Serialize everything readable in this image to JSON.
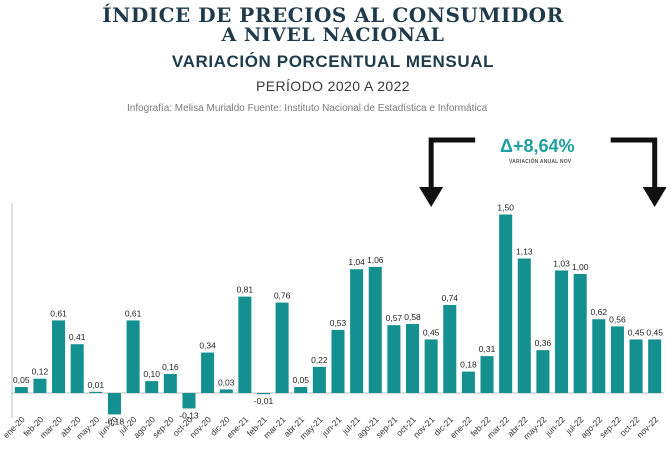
{
  "header": {
    "title_line1": "ÍNDICE DE PRECIOS AL CONSUMIDOR",
    "title_line2": "A NIVEL NACIONAL",
    "subtitle": "VARIACIÓN PORCENTUAL MENSUAL",
    "period": "PERÍODO 2020 A 2022",
    "credit": "Infografía: Melisa Murialdo Fuente: Instituto Nacional de Estadística e Informática"
  },
  "annotation": {
    "annual_change": "Δ+8,64%",
    "annual_label": "VARIACIÓN ANUAL NOV"
  },
  "colors": {
    "bar": "#13908f",
    "arrow": "#111111",
    "accent": "#1e9fa2"
  },
  "chart_data": {
    "type": "bar",
    "title": "VARIACIÓN PORCENTUAL MENSUAL",
    "categories": [
      "ene-20",
      "feb-20",
      "mar-20",
      "abr-20",
      "may-20",
      "jun-20",
      "jul-20",
      "ago-20",
      "sep-20",
      "oct-20",
      "nov-20",
      "dic-20",
      "ene-21",
      "feb-21",
      "mar-21",
      "abr-21",
      "may-21",
      "jun-21",
      "jul-21",
      "ago-21",
      "sep-21",
      "oct-21",
      "nov-21",
      "dic-21",
      "ene-22",
      "feb-22",
      "mar-22",
      "abr-22",
      "may-22",
      "jun-22",
      "jul-22",
      "ago-22",
      "sep-22",
      "oct-22",
      "nov-22"
    ],
    "values": [
      0.05,
      0.12,
      0.61,
      0.41,
      0.01,
      -0.18,
      0.61,
      0.1,
      0.16,
      -0.13,
      0.34,
      0.03,
      0.81,
      -0.01,
      0.76,
      0.05,
      0.22,
      0.53,
      1.04,
      1.06,
      0.57,
      0.58,
      0.45,
      0.74,
      0.18,
      0.31,
      1.5,
      1.13,
      0.36,
      1.03,
      1.0,
      0.62,
      0.56,
      0.45,
      0.45
    ],
    "data_labels": [
      "0,05",
      "0,12",
      "0,61",
      "0,41",
      "0,01",
      "-0,18",
      "0,61",
      "0,10",
      "0,16",
      "-0,13",
      "0,34",
      "0,03",
      "0,81",
      "-0,01",
      "0,76",
      "0,05",
      "0,22",
      "0,53",
      "1,04",
      "1,06",
      "0,57",
      "0,58",
      "0,45",
      "0,74",
      "0,18",
      "0,31",
      "1,50",
      "1,13",
      "0,36",
      "1,03",
      "1,00",
      "0,62",
      "0,56",
      "0,45",
      "0,45"
    ],
    "ylim": [
      -0.25,
      1.6
    ],
    "grid": false,
    "legend": "none",
    "highlight_markers": [
      "nov-21",
      "nov-22"
    ]
  }
}
